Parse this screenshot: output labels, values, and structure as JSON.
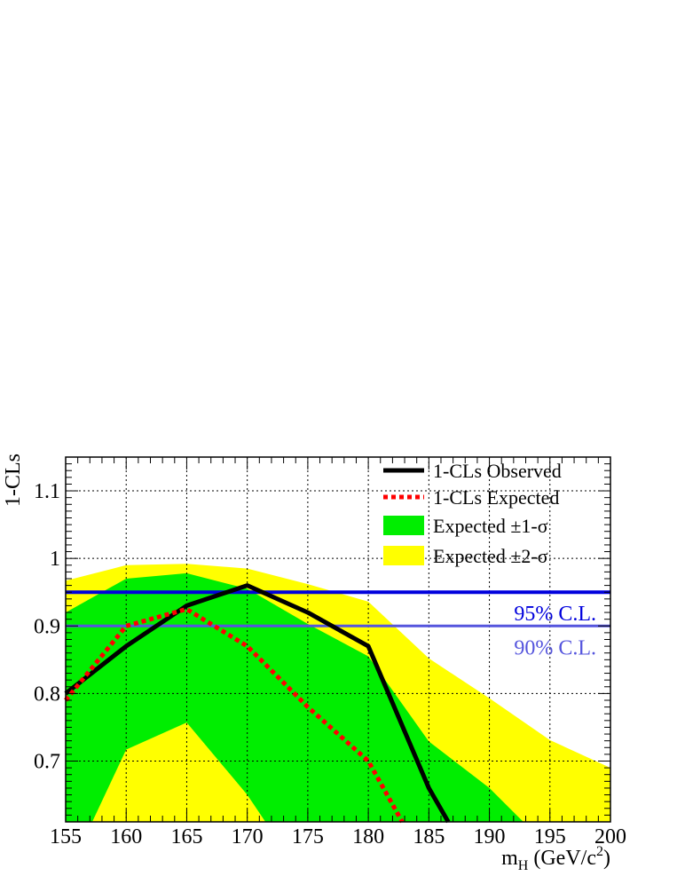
{
  "chart_data": {
    "type": "line",
    "xlabel": {
      "main": "m",
      "sub": "H",
      "rest": " (GeV/c",
      "sup": "2",
      "close": ")"
    },
    "ylabel": "1-CLs",
    "xlim": [
      155,
      200
    ],
    "ylim": [
      0.61,
      1.15
    ],
    "xticks": [
      "155",
      "160",
      "165",
      "170",
      "175",
      "180",
      "185",
      "190",
      "195",
      "200"
    ],
    "yticks": [
      "0.7",
      "0.8",
      "0.9",
      "1",
      "1.1"
    ],
    "grid": true,
    "legend_position": "top-right",
    "x": [
      155,
      160,
      165,
      170,
      175,
      180,
      185,
      190,
      195,
      200
    ],
    "series": [
      {
        "name": "1-CLs Observed",
        "style": "solid",
        "color": "#000000",
        "values": [
          0.8,
          0.87,
          0.93,
          0.96,
          0.92,
          0.87,
          0.66,
          null,
          null,
          null
        ],
        "end_point": [
          186.6,
          0.61
        ]
      },
      {
        "name": "1-CLs Expected",
        "style": "dotted",
        "color": "#ff0000",
        "values": [
          0.79,
          0.9,
          0.925,
          0.87,
          0.78,
          0.7,
          null,
          null,
          null,
          null
        ],
        "end_point": [
          182.8,
          0.61
        ]
      }
    ],
    "bands": [
      {
        "name": "Expected ±2-σ",
        "color": "#ffff00",
        "upper": [
          0.967,
          0.99,
          0.992,
          0.985,
          0.962,
          0.936,
          0.852,
          0.793,
          0.731,
          0.69
        ],
        "lower_outline": [
          [
            155,
            0.61
          ],
          [
            157.2,
            0.61
          ],
          [
            160,
            0.717
          ],
          [
            165,
            0.757
          ],
          [
            170,
            0.65
          ],
          [
            171.5,
            0.61
          ]
        ]
      },
      {
        "name": "Expected ±1-σ",
        "color": "#00ee00",
        "upper": [
          0.92,
          0.97,
          0.978,
          0.955,
          0.903,
          0.855,
          0.729,
          0.66,
          null,
          null
        ],
        "upper_end": [
          192.8,
          0.61
        ],
        "lower_outline": [
          [
            155,
            0.61
          ],
          [
            157.2,
            0.61
          ],
          [
            160,
            0.717
          ],
          [
            165,
            0.757
          ],
          [
            170,
            0.65
          ],
          [
            171.5,
            0.61
          ]
        ]
      }
    ],
    "reference_lines": [
      {
        "label": "95% C.L.",
        "y": 0.95,
        "color": "#0000dd"
      },
      {
        "label": "90% C.L.",
        "y": 0.9,
        "color": "#5555dd"
      }
    ]
  },
  "legend": [
    {
      "label": "1-CLs Observed",
      "kind": "solid",
      "color": "#000000"
    },
    {
      "label": "1-CLs Expected",
      "kind": "dotted",
      "color": "#ff0000"
    },
    {
      "label": "Expected ±1-σ",
      "kind": "fill",
      "color": "#00ee00"
    },
    {
      "label": "Expected ±2-σ",
      "kind": "fill",
      "color": "#ffff00"
    }
  ]
}
